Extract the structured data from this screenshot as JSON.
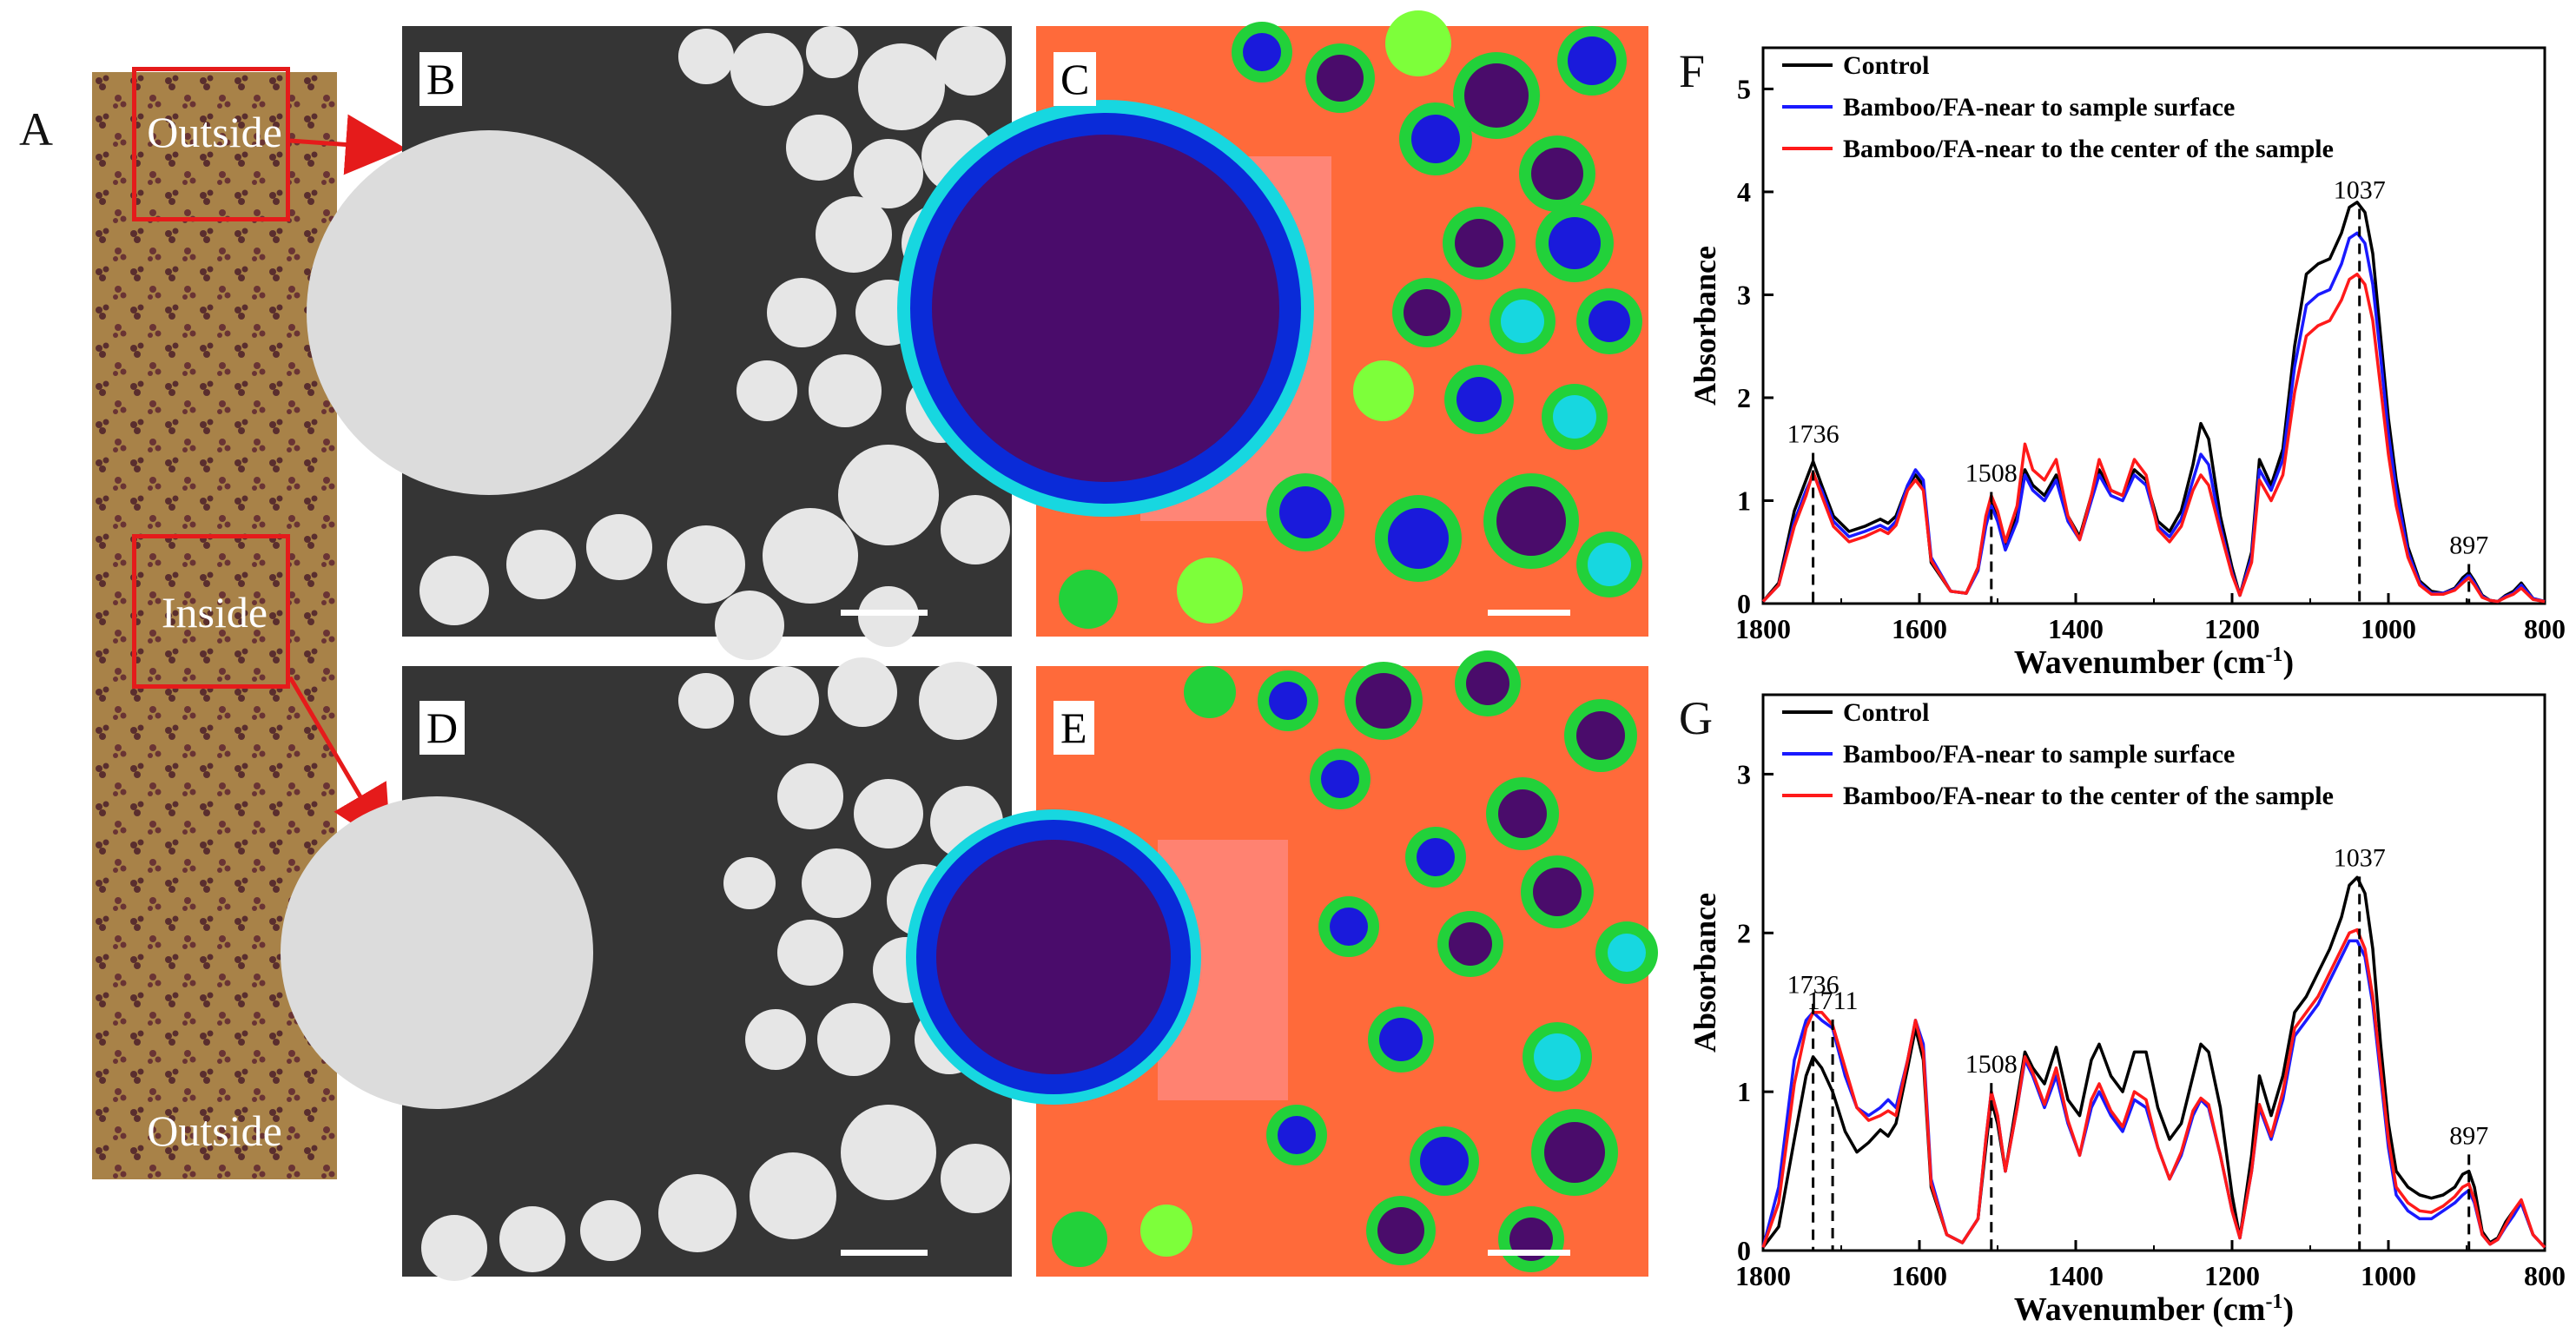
{
  "panels": {
    "A": "A",
    "B": "B",
    "C": "C",
    "D": "D",
    "E": "E",
    "F": "F",
    "G": "G"
  },
  "strip": {
    "label_top": "Outside",
    "label_middle": "Inside",
    "label_bottom": "Outside"
  },
  "colors": {
    "control": "#000000",
    "surface": "#1a1aff",
    "center": "#ff1a1a",
    "annotation_box": "#e51b1b",
    "strip_brown": "#a88248"
  },
  "chart_data": [
    {
      "type": "line",
      "panel": "F",
      "xlabel": "Wavenumber (cm",
      "xlabel_sup": "-1",
      "xlabel_close": ")",
      "ylabel": "Absorbance",
      "xlim": [
        1800,
        800
      ],
      "ylim": [
        0,
        5.4
      ],
      "xticks": [
        1800,
        1600,
        1400,
        1200,
        1000,
        800
      ],
      "yticks": [
        0,
        1,
        2,
        3,
        4,
        5
      ],
      "legend": [
        "Control",
        "Bamboo/FA-near to sample surface",
        "Bamboo/FA-near to the center of the sample"
      ],
      "legend_position": "top-left",
      "annotations": [
        {
          "x": 1736,
          "label": "1736",
          "y": 1.38
        },
        {
          "x": 1508,
          "label": "1508",
          "y": 1.0
        },
        {
          "x": 1037,
          "label": "1037",
          "y": 3.75
        },
        {
          "x": 897,
          "label": "897",
          "y": 0.3
        }
      ],
      "x": [
        1800,
        1780,
        1760,
        1745,
        1736,
        1725,
        1710,
        1690,
        1670,
        1650,
        1640,
        1630,
        1615,
        1605,
        1595,
        1585,
        1560,
        1540,
        1525,
        1515,
        1508,
        1500,
        1490,
        1475,
        1465,
        1455,
        1440,
        1425,
        1410,
        1395,
        1380,
        1370,
        1355,
        1340,
        1325,
        1310,
        1295,
        1280,
        1265,
        1250,
        1240,
        1230,
        1215,
        1200,
        1190,
        1175,
        1165,
        1150,
        1135,
        1120,
        1105,
        1090,
        1075,
        1060,
        1050,
        1040,
        1030,
        1020,
        1010,
        1000,
        990,
        975,
        960,
        945,
        930,
        915,
        905,
        897,
        890,
        880,
        870,
        860,
        850,
        840,
        830,
        815,
        800
      ],
      "series": [
        {
          "name": "Control",
          "values": [
            0.02,
            0.2,
            0.9,
            1.2,
            1.38,
            1.15,
            0.85,
            0.7,
            0.75,
            0.82,
            0.78,
            0.85,
            1.15,
            1.25,
            1.15,
            0.4,
            0.12,
            0.1,
            0.35,
            0.8,
            1.0,
            0.85,
            0.55,
            0.85,
            1.3,
            1.15,
            1.05,
            1.25,
            0.85,
            0.65,
            1.05,
            1.3,
            1.1,
            1.05,
            1.3,
            1.2,
            0.8,
            0.7,
            0.9,
            1.35,
            1.75,
            1.6,
            0.85,
            0.35,
            0.08,
            0.5,
            1.4,
            1.15,
            1.5,
            2.5,
            3.2,
            3.3,
            3.35,
            3.6,
            3.85,
            3.9,
            3.8,
            3.4,
            2.6,
            1.8,
            1.2,
            0.55,
            0.22,
            0.12,
            0.1,
            0.15,
            0.25,
            0.3,
            0.22,
            0.08,
            0.03,
            0.02,
            0.08,
            0.12,
            0.2,
            0.05,
            0.02
          ]
        },
        {
          "name": "Bamboo/FA-near to sample surface",
          "values": [
            0.02,
            0.18,
            0.8,
            1.1,
            1.25,
            1.1,
            0.8,
            0.65,
            0.7,
            0.76,
            0.72,
            0.8,
            1.15,
            1.3,
            1.2,
            0.45,
            0.12,
            0.1,
            0.32,
            0.75,
            0.95,
            0.8,
            0.52,
            0.8,
            1.25,
            1.1,
            1.0,
            1.2,
            0.8,
            0.62,
            1.0,
            1.25,
            1.05,
            1.0,
            1.25,
            1.15,
            0.75,
            0.65,
            0.82,
            1.2,
            1.45,
            1.35,
            0.75,
            0.3,
            0.08,
            0.45,
            1.3,
            1.1,
            1.4,
            2.3,
            2.9,
            3.0,
            3.05,
            3.3,
            3.55,
            3.6,
            3.5,
            3.1,
            2.4,
            1.65,
            1.1,
            0.5,
            0.2,
            0.1,
            0.1,
            0.14,
            0.22,
            0.28,
            0.2,
            0.07,
            0.03,
            0.02,
            0.07,
            0.1,
            0.18,
            0.05,
            0.02
          ]
        },
        {
          "name": "Bamboo/FA-near to the center of the sample",
          "values": [
            0.02,
            0.18,
            0.75,
            1.05,
            1.28,
            1.05,
            0.75,
            0.6,
            0.65,
            0.72,
            0.68,
            0.76,
            1.1,
            1.2,
            1.1,
            0.42,
            0.12,
            0.1,
            0.35,
            0.85,
            1.05,
            0.9,
            0.6,
            0.95,
            1.55,
            1.3,
            1.2,
            1.4,
            0.85,
            0.62,
            1.05,
            1.4,
            1.1,
            1.05,
            1.4,
            1.25,
            0.72,
            0.6,
            0.75,
            1.1,
            1.25,
            1.15,
            0.7,
            0.28,
            0.08,
            0.4,
            1.2,
            1.0,
            1.25,
            2.05,
            2.6,
            2.7,
            2.75,
            2.95,
            3.15,
            3.2,
            3.1,
            2.75,
            2.1,
            1.45,
            0.95,
            0.45,
            0.18,
            0.09,
            0.09,
            0.13,
            0.2,
            0.25,
            0.18,
            0.06,
            0.03,
            0.02,
            0.06,
            0.09,
            0.15,
            0.04,
            0.02
          ]
        }
      ]
    },
    {
      "type": "line",
      "panel": "G",
      "xlabel": "Wavenumber (cm",
      "xlabel_sup": "-1",
      "xlabel_close": ")",
      "ylabel": "Absorbance",
      "xlim": [
        1800,
        800
      ],
      "ylim": [
        0,
        3.5
      ],
      "xticks": [
        1800,
        1600,
        1400,
        1200,
        1000,
        800
      ],
      "yticks": [
        0,
        1,
        2,
        3
      ],
      "legend": [
        "Control",
        "Bamboo/FA-near to sample surface",
        "Bamboo/FA-near to the center of the sample"
      ],
      "legend_position": "top-left",
      "annotations": [
        {
          "x": 1736,
          "label": "1736",
          "y": 1.5
        },
        {
          "x": 1711,
          "label": "1711",
          "y": 1.4
        },
        {
          "x": 1508,
          "label": "1508",
          "y": 1.0
        },
        {
          "x": 1037,
          "label": "1037",
          "y": 2.3
        },
        {
          "x": 897,
          "label": "897",
          "y": 0.55
        }
      ],
      "x": [
        1800,
        1780,
        1760,
        1745,
        1736,
        1725,
        1711,
        1695,
        1680,
        1665,
        1650,
        1640,
        1630,
        1615,
        1605,
        1595,
        1585,
        1565,
        1545,
        1525,
        1515,
        1508,
        1500,
        1490,
        1475,
        1465,
        1455,
        1440,
        1425,
        1410,
        1395,
        1380,
        1370,
        1355,
        1340,
        1325,
        1310,
        1295,
        1280,
        1265,
        1250,
        1240,
        1230,
        1215,
        1200,
        1190,
        1175,
        1165,
        1150,
        1135,
        1120,
        1105,
        1090,
        1075,
        1060,
        1050,
        1040,
        1030,
        1020,
        1010,
        1000,
        990,
        975,
        960,
        945,
        930,
        915,
        905,
        897,
        890,
        880,
        870,
        860,
        850,
        840,
        830,
        815,
        800
      ],
      "series": [
        {
          "name": "Control",
          "values": [
            0.02,
            0.15,
            0.7,
            1.1,
            1.22,
            1.15,
            1.0,
            0.75,
            0.62,
            0.68,
            0.76,
            0.72,
            0.8,
            1.15,
            1.4,
            1.2,
            0.4,
            0.1,
            0.05,
            0.2,
            0.65,
            0.95,
            0.8,
            0.5,
            0.95,
            1.25,
            1.15,
            1.05,
            1.28,
            0.95,
            0.85,
            1.2,
            1.3,
            1.1,
            1.0,
            1.25,
            1.25,
            0.9,
            0.7,
            0.8,
            1.1,
            1.3,
            1.25,
            0.9,
            0.35,
            0.08,
            0.6,
            1.1,
            0.85,
            1.1,
            1.5,
            1.6,
            1.75,
            1.9,
            2.1,
            2.3,
            2.35,
            2.25,
            1.9,
            1.3,
            0.8,
            0.5,
            0.4,
            0.35,
            0.33,
            0.35,
            0.4,
            0.48,
            0.5,
            0.4,
            0.12,
            0.05,
            0.08,
            0.18,
            0.25,
            0.3,
            0.1,
            0.02
          ]
        },
        {
          "name": "Bamboo/FA-near to sample surface",
          "values": [
            0.02,
            0.4,
            1.2,
            1.45,
            1.5,
            1.45,
            1.4,
            1.1,
            0.9,
            0.85,
            0.9,
            0.95,
            0.9,
            1.2,
            1.45,
            1.3,
            0.45,
            0.1,
            0.05,
            0.2,
            0.7,
            1.0,
            0.85,
            0.5,
            0.9,
            1.2,
            1.1,
            0.9,
            1.1,
            0.8,
            0.6,
            0.9,
            1.0,
            0.85,
            0.75,
            0.95,
            0.9,
            0.65,
            0.45,
            0.6,
            0.85,
            0.95,
            0.9,
            0.6,
            0.25,
            0.08,
            0.5,
            0.9,
            0.7,
            0.95,
            1.35,
            1.45,
            1.55,
            1.7,
            1.85,
            1.95,
            1.95,
            1.85,
            1.55,
            1.1,
            0.65,
            0.35,
            0.25,
            0.2,
            0.2,
            0.25,
            0.3,
            0.35,
            0.38,
            0.3,
            0.1,
            0.04,
            0.07,
            0.15,
            0.22,
            0.3,
            0.1,
            0.02
          ]
        },
        {
          "name": "Bamboo/FA-near to the center of the sample",
          "values": [
            0.02,
            0.3,
            1.05,
            1.4,
            1.5,
            1.5,
            1.42,
            1.15,
            0.9,
            0.82,
            0.85,
            0.88,
            0.85,
            1.2,
            1.45,
            1.25,
            0.42,
            0.1,
            0.05,
            0.2,
            0.7,
            1.0,
            0.85,
            0.5,
            0.9,
            1.22,
            1.12,
            0.92,
            1.15,
            0.82,
            0.6,
            0.95,
            1.05,
            0.88,
            0.78,
            1.0,
            0.95,
            0.65,
            0.45,
            0.62,
            0.88,
            0.96,
            0.92,
            0.6,
            0.25,
            0.08,
            0.5,
            0.92,
            0.72,
            1.0,
            1.4,
            1.5,
            1.6,
            1.75,
            1.9,
            2.0,
            2.02,
            1.9,
            1.6,
            1.15,
            0.7,
            0.4,
            0.3,
            0.25,
            0.24,
            0.28,
            0.34,
            0.4,
            0.42,
            0.32,
            0.1,
            0.04,
            0.07,
            0.16,
            0.25,
            0.32,
            0.1,
            0.02
          ]
        }
      ]
    }
  ]
}
